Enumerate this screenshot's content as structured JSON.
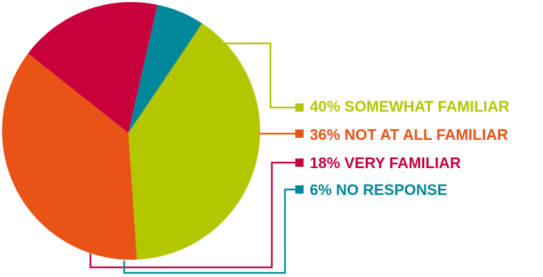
{
  "chart_data": {
    "type": "pie",
    "title": "",
    "legend_placement": "right",
    "slices": [
      {
        "label": "40% SOMEWHAT FAMILIAR",
        "value": 40,
        "color": "#b3c700"
      },
      {
        "label": "36% NOT AT ALL FAMILIAR",
        "value": 36,
        "color": "#e95316"
      },
      {
        "label": "18% VERY FAMILIAR",
        "value": 18,
        "color": "#c8003c"
      },
      {
        "label": "6% NO RESPONSE",
        "value": 6,
        "color": "#00889a"
      }
    ]
  }
}
